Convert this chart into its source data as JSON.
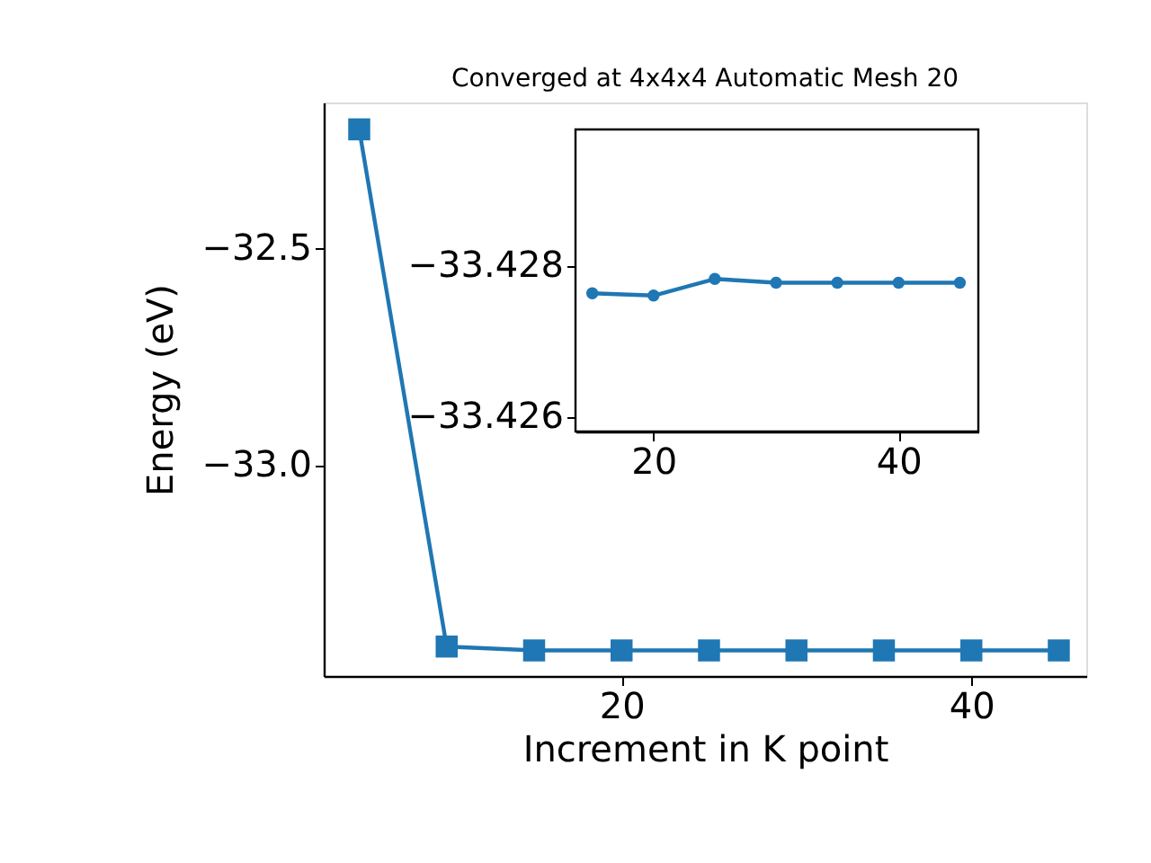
{
  "chart_data": [
    {
      "type": "line",
      "title": "Converged at 4x4x4 Automatic Mesh 20",
      "xlabel": "Increment in K point",
      "ylabel": "Energy (eV)",
      "marker": "square",
      "line_style": "solid",
      "x": [
        5,
        10,
        15,
        20,
        25,
        30,
        35,
        40,
        45
      ],
      "series": [
        {
          "color": "#1f77b4",
          "values": [
            -32.226,
            -33.419,
            -33.428,
            -33.428,
            -33.428,
            -33.428,
            -33.428,
            -33.428,
            -33.428
          ]
        }
      ],
      "xlim": [
        2.97,
        46.57
      ],
      "xticks": [
        20,
        40
      ],
      "ylim": [
        -33.487,
        -32.164
      ],
      "yticks": [
        {
          "value": -33.0,
          "label": "−33.0"
        },
        {
          "value": -32.5,
          "label": "−32.5"
        }
      ]
    },
    {
      "type": "line",
      "marker": "circle",
      "line_style": "solid",
      "x": [
        15,
        20,
        25,
        30,
        35,
        40,
        45
      ],
      "series": [
        {
          "color": "#1f77b4",
          "values": [
            -33.42763,
            -33.4276,
            -33.42782,
            -33.42777,
            -33.42777,
            -33.42777,
            -33.42777
          ]
        }
      ],
      "xlim": [
        13.63,
        46.51
      ],
      "xticks": [
        20,
        40
      ],
      "ylim": [
        -33.4258,
        -33.4298
      ],
      "yticks": [
        {
          "value": -33.428,
          "label": "−33.428"
        },
        {
          "value": -33.426,
          "label": "−33.426"
        }
      ]
    }
  ]
}
